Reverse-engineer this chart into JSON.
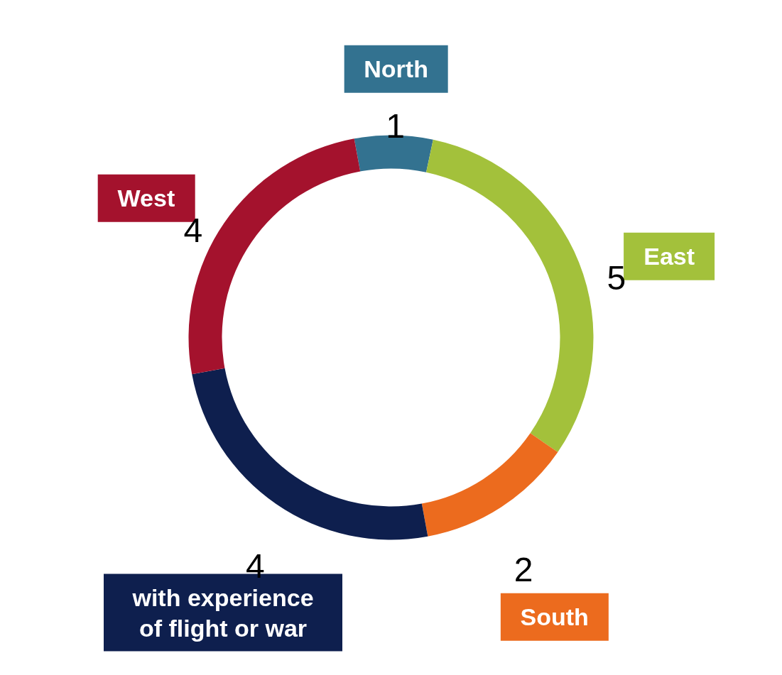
{
  "chart_data": {
    "type": "donut",
    "categories": [
      "North",
      "East",
      "South",
      "with experience of flight or war",
      "West"
    ],
    "values": [
      1,
      5,
      2,
      4,
      4
    ],
    "colors": [
      "#337290",
      "#a3c13b",
      "#ec6b1e",
      "#0e1f4e",
      "#a4122d"
    ],
    "data_labels": true
  }
}
